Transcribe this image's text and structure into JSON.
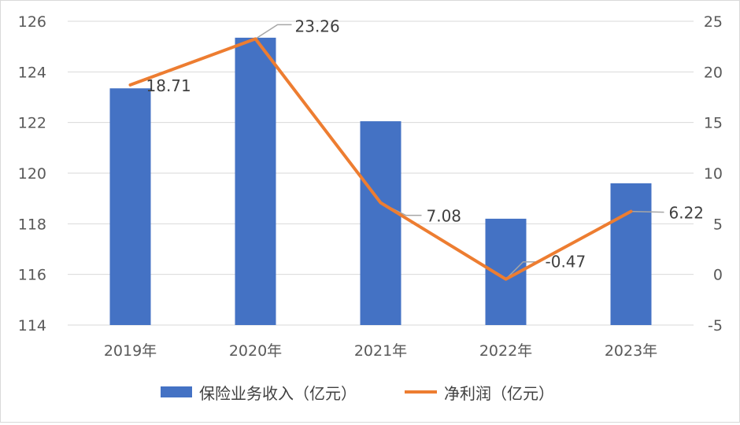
{
  "chart_data": {
    "type": "bar",
    "title": "",
    "categories": [
      "2019年",
      "2020年",
      "2021年",
      "2022年",
      "2023年"
    ],
    "series": [
      {
        "name": "保险业务收入（亿元）",
        "type": "bar",
        "axis": "left",
        "color": "#4472C4",
        "values": [
          123.35,
          125.35,
          122.05,
          118.2,
          119.6
        ]
      },
      {
        "name": "净利润（亿元）",
        "type": "line",
        "axis": "right",
        "color": "#ED7D31",
        "values": [
          18.71,
          23.26,
          7.08,
          -0.47,
          6.22
        ],
        "data_labels": [
          "18.71",
          "23.26",
          "7.08",
          "-0.47",
          "6.22"
        ]
      }
    ],
    "y_left": {
      "ylim": [
        114,
        126
      ],
      "ticks": [
        "126",
        "124",
        "122",
        "120",
        "118",
        "116",
        "114"
      ]
    },
    "y_right": {
      "ylim": [
        -5,
        25
      ],
      "ticks": [
        "25",
        "20",
        "15",
        "10",
        "5",
        "0",
        "-5"
      ]
    },
    "grid": true,
    "legend": "bottom"
  }
}
